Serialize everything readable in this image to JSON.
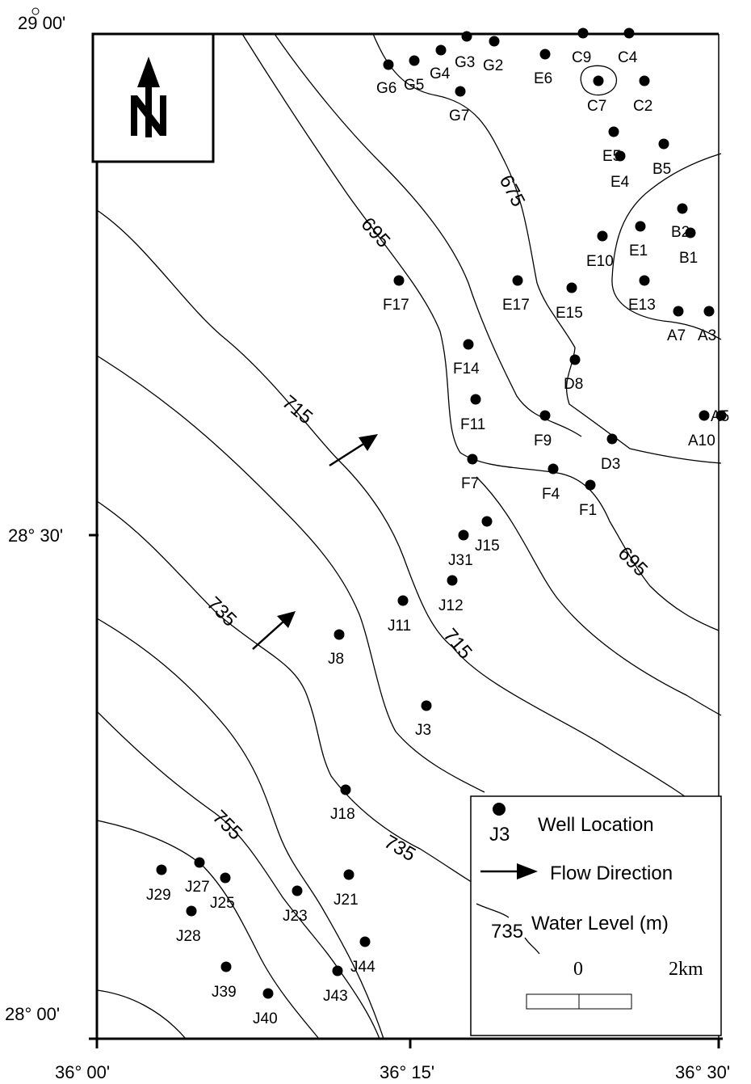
{
  "coordinates": {
    "lat_top": "29 00'",
    "lat_mid": "28° 30'",
    "lat_bottom": "28° 00'",
    "lon_left": "36° 00'",
    "lon_mid": "36° 15'",
    "lon_right": "36° 30'"
  },
  "north_arrow": {
    "letter": "N"
  },
  "contours": {
    "label_675": "675",
    "label_695": "695",
    "label_715": "715",
    "label_735": "735",
    "label_755": "755"
  },
  "wells": [
    "G6",
    "G5",
    "G4",
    "G3",
    "G2",
    "E6",
    "C9",
    "C4",
    "G7",
    "C7",
    "C2",
    "E5",
    "B5",
    "E4",
    "B2",
    "E1",
    "B1",
    "E10",
    "F17",
    "E17",
    "E15",
    "E13",
    "A7",
    "A3",
    "F14",
    "D8",
    "F11",
    "F9",
    "A5",
    "A10",
    "D3",
    "F7",
    "F4",
    "F1",
    "J31",
    "J15",
    "J12",
    "J11",
    "J8",
    "J3",
    "J18",
    "J29",
    "J27",
    "J25",
    "J21",
    "J23",
    "J28",
    "J44",
    "J39",
    "J43",
    "J40"
  ],
  "legend": {
    "well_sample": "J3",
    "well_location": "Well  Location",
    "flow_direction": "Flow  Direction",
    "water_level_sample": "735",
    "water_level": "Water  Level (m)",
    "scale_zero": "0",
    "scale_end": "2km"
  }
}
